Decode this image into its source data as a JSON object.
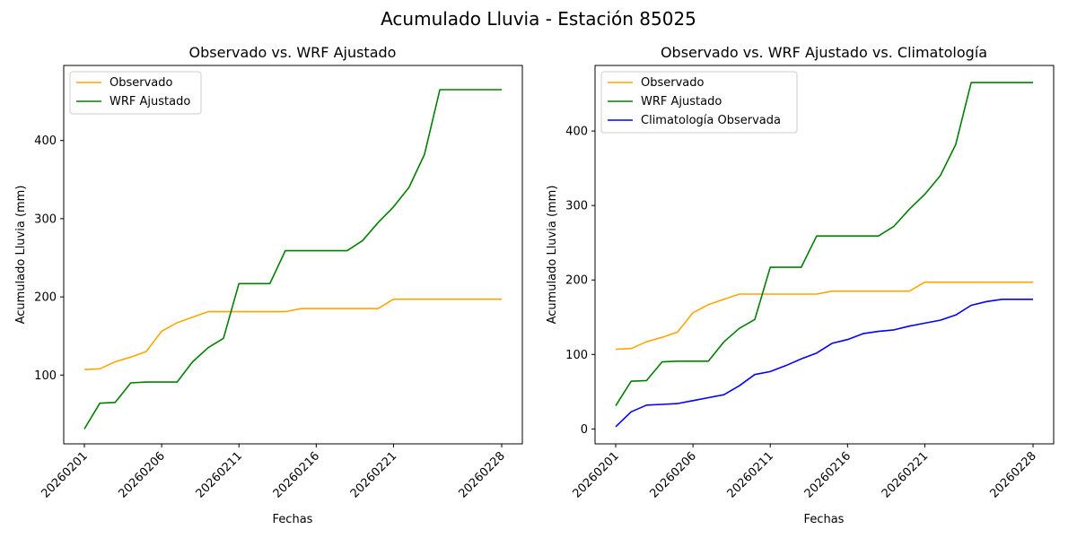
{
  "figure": {
    "suptitle": "Acumulado Lluvia - Estación 85025"
  },
  "chart_data": [
    {
      "type": "line",
      "title": "Observado vs. WRF Ajustado",
      "xlabel": "Fechas",
      "ylabel": "Acumulado Lluvia (mm)",
      "x": [
        20260201,
        20260202,
        20260203,
        20260204,
        20260205,
        20260206,
        20260207,
        20260208,
        20260209,
        20260210,
        20260211,
        20260212,
        20260213,
        20260214,
        20260215,
        20260216,
        20260217,
        20260218,
        20260219,
        20260220,
        20260221,
        20260222,
        20260223,
        20260224,
        20260225,
        20260226,
        20260227,
        20260228
      ],
      "xticks": [
        "20260201",
        "20260206",
        "20260211",
        "20260216",
        "20260221",
        "20260228"
      ],
      "xtick_index": [
        0,
        5,
        10,
        15,
        20,
        27
      ],
      "ylim": [
        12,
        496
      ],
      "yticks": [
        100,
        200,
        300,
        400
      ],
      "legend": "upper-left",
      "grid": false,
      "series": [
        {
          "name": "Observado",
          "color": "#ffa500",
          "values": [
            107,
            108,
            117,
            123,
            130,
            156,
            167,
            174,
            181,
            181,
            181,
            181,
            181,
            181,
            185,
            185,
            185,
            185,
            185,
            185,
            197,
            197,
            197,
            197,
            197,
            197,
            197,
            197
          ]
        },
        {
          "name": "WRF Ajustado",
          "color": "#008000",
          "values": [
            31,
            64,
            65,
            90,
            91,
            91,
            91,
            117,
            135,
            147,
            217,
            217,
            217,
            259,
            259,
            259,
            259,
            259,
            272,
            295,
            315,
            340,
            382,
            465,
            465,
            465,
            465,
            465
          ]
        }
      ]
    },
    {
      "type": "line",
      "title": "Observado vs. WRF Ajustado vs. Climatología",
      "xlabel": "Fechas",
      "ylabel": "Acumulado Lluvia (mm)",
      "x": [
        20260201,
        20260202,
        20260203,
        20260204,
        20260205,
        20260206,
        20260207,
        20260208,
        20260209,
        20260210,
        20260211,
        20260212,
        20260213,
        20260214,
        20260215,
        20260216,
        20260217,
        20260218,
        20260219,
        20260220,
        20260221,
        20260222,
        20260223,
        20260224,
        20260225,
        20260226,
        20260227,
        20260228
      ],
      "xticks": [
        "20260201",
        "20260206",
        "20260211",
        "20260216",
        "20260221",
        "20260228"
      ],
      "xtick_index": [
        0,
        5,
        10,
        15,
        20,
        27
      ],
      "ylim": [
        -20,
        488
      ],
      "yticks": [
        0,
        100,
        200,
        300,
        400
      ],
      "legend": "upper-left",
      "grid": false,
      "series": [
        {
          "name": "Observado",
          "color": "#ffa500",
          "values": [
            107,
            108,
            117,
            123,
            130,
            156,
            167,
            174,
            181,
            181,
            181,
            181,
            181,
            181,
            185,
            185,
            185,
            185,
            185,
            185,
            197,
            197,
            197,
            197,
            197,
            197,
            197,
            197
          ]
        },
        {
          "name": "WRF Ajustado",
          "color": "#008000",
          "values": [
            31,
            64,
            65,
            90,
            91,
            91,
            91,
            117,
            135,
            147,
            217,
            217,
            217,
            259,
            259,
            259,
            259,
            259,
            272,
            295,
            315,
            340,
            382,
            465,
            465,
            465,
            465,
            465
          ]
        },
        {
          "name": "Climatología Observada",
          "color": "#0000ff",
          "values": [
            3,
            23,
            32,
            33,
            34,
            38,
            42,
            46,
            58,
            73,
            77,
            85,
            94,
            102,
            115,
            120,
            128,
            131,
            133,
            138,
            142,
            146,
            153,
            166,
            171,
            174,
            174,
            174
          ]
        }
      ]
    }
  ]
}
